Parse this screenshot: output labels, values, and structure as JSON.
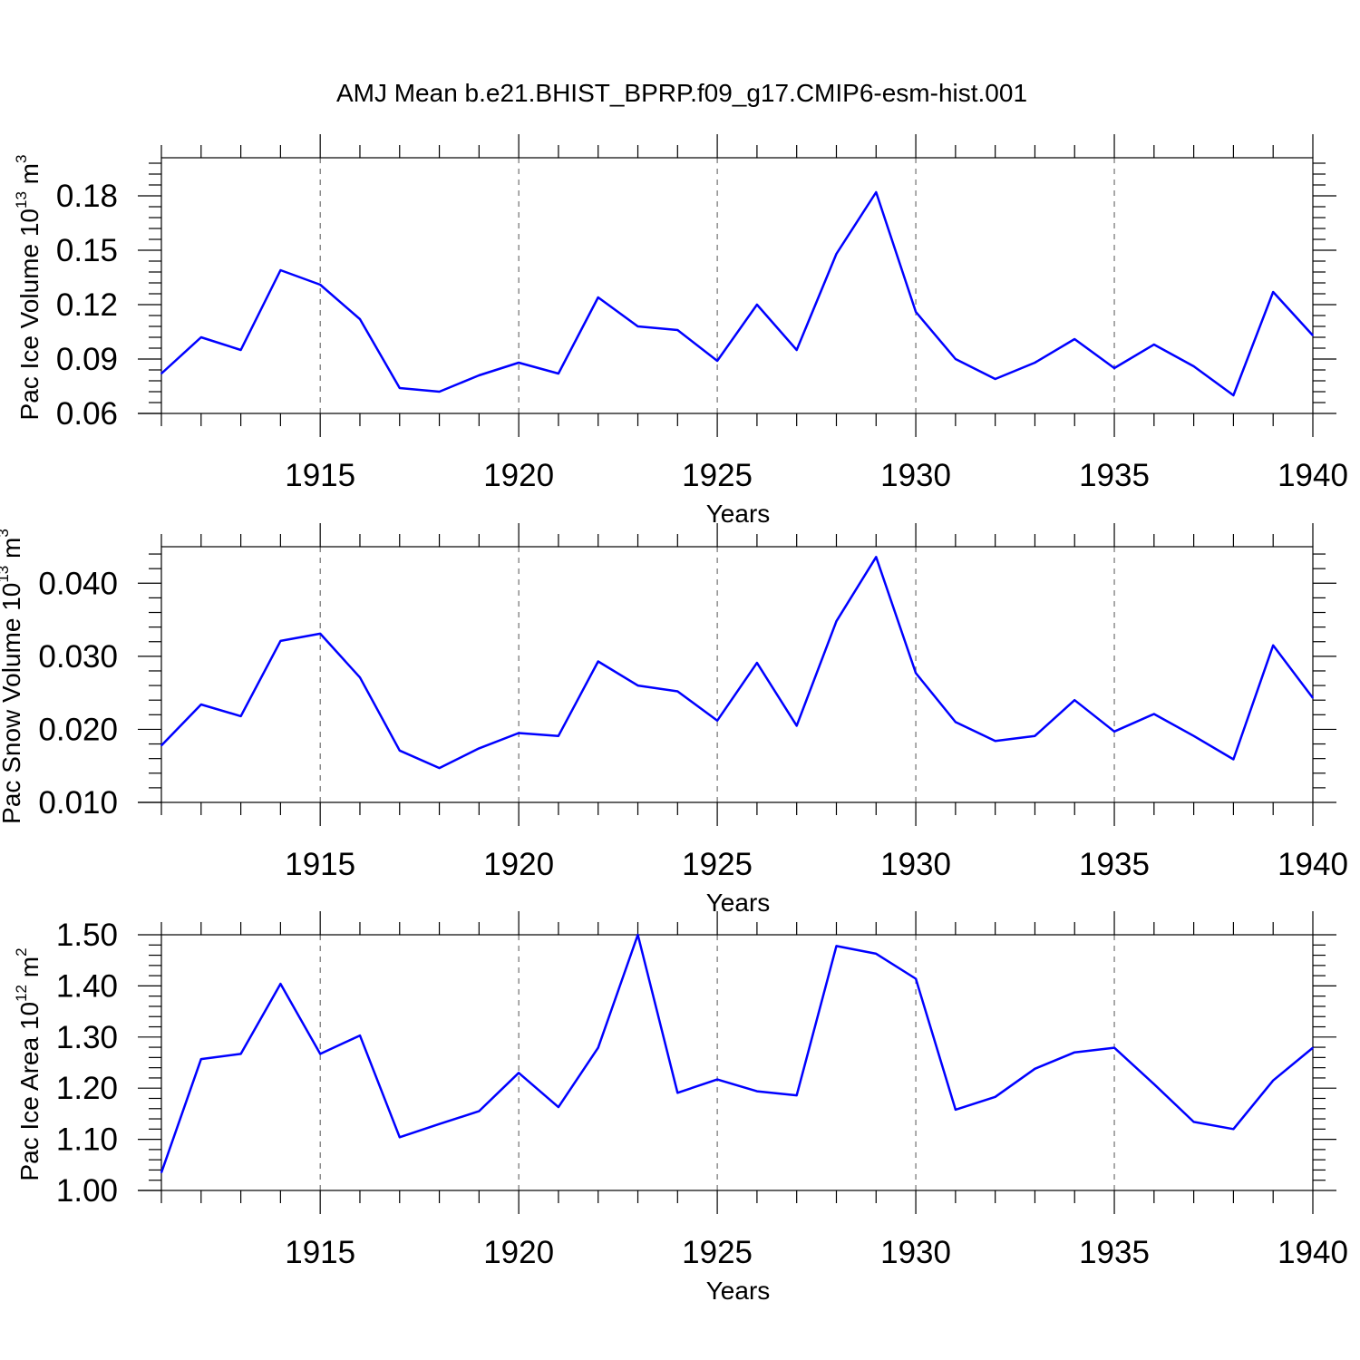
{
  "title": "AMJ Mean b.e21.BHIST_BPRP.f09_g17.CMIP6-esm-hist.001",
  "chart_data": [
    {
      "type": "line",
      "title": "AMJ Mean b.e21.BHIST_BPRP.f09_g17.CMIP6-esm-hist.001",
      "xlabel": "Years",
      "ylabel_main": "Pac Ice Volume 10",
      "ylabel_exp": "13",
      "ylabel_unit": " m",
      "ylabel_unit_exp": "3",
      "xlim": [
        1911,
        1940
      ],
      "ylim": [
        0.06,
        0.201
      ],
      "xticks": [
        1915,
        1920,
        1925,
        1930,
        1935,
        1940
      ],
      "xtick_labels": [
        "1915",
        "1920",
        "1925",
        "1930",
        "1935",
        "1940"
      ],
      "yticks": [
        0.06,
        0.09,
        0.12,
        0.15,
        0.18
      ],
      "ytick_labels": [
        "0.06",
        "0.09",
        "0.12",
        "0.15",
        "0.18"
      ],
      "color": "#0000ff",
      "x": [
        1911,
        1912,
        1913,
        1914,
        1915,
        1916,
        1917,
        1918,
        1919,
        1920,
        1921,
        1922,
        1923,
        1924,
        1925,
        1926,
        1927,
        1928,
        1929,
        1930,
        1931,
        1932,
        1933,
        1934,
        1935,
        1936,
        1937,
        1938,
        1939,
        1940
      ],
      "y": [
        0.082,
        0.102,
        0.095,
        0.139,
        0.131,
        0.112,
        0.074,
        0.072,
        0.081,
        0.088,
        0.082,
        0.124,
        0.108,
        0.106,
        0.089,
        0.12,
        0.095,
        0.148,
        0.182,
        0.116,
        0.09,
        0.079,
        0.088,
        0.101,
        0.085,
        0.098,
        0.086,
        0.07,
        0.127,
        0.103
      ]
    },
    {
      "type": "line",
      "xlabel": "Years",
      "ylabel_main": "Pac Snow Volume 10",
      "ylabel_exp": "13",
      "ylabel_unit": " m",
      "ylabel_unit_exp": "3",
      "xlim": [
        1911,
        1940
      ],
      "ylim": [
        0.01,
        0.045
      ],
      "xticks": [
        1915,
        1920,
        1925,
        1930,
        1935,
        1940
      ],
      "xtick_labels": [
        "1915",
        "1920",
        "1925",
        "1930",
        "1935",
        "1940"
      ],
      "yticks": [
        0.01,
        0.02,
        0.03,
        0.04
      ],
      "ytick_labels": [
        "0.010",
        "0.020",
        "0.030",
        "0.040"
      ],
      "color": "#0000ff",
      "x": [
        1911,
        1912,
        1913,
        1914,
        1915,
        1916,
        1917,
        1918,
        1919,
        1920,
        1921,
        1922,
        1923,
        1924,
        1925,
        1926,
        1927,
        1928,
        1929,
        1930,
        1931,
        1932,
        1933,
        1934,
        1935,
        1936,
        1937,
        1938,
        1939,
        1940
      ],
      "y": [
        0.0178,
        0.0234,
        0.0218,
        0.0321,
        0.0331,
        0.0271,
        0.0171,
        0.0147,
        0.0174,
        0.0195,
        0.0191,
        0.0293,
        0.026,
        0.0252,
        0.0212,
        0.0291,
        0.0205,
        0.0348,
        0.0436,
        0.0277,
        0.021,
        0.0184,
        0.0191,
        0.024,
        0.0197,
        0.0221,
        0.0191,
        0.0159,
        0.0315,
        0.0243
      ]
    },
    {
      "type": "line",
      "xlabel": "Years",
      "ylabel_main": "Pac Ice Area 10",
      "ylabel_exp": "12",
      "ylabel_unit": " m",
      "ylabel_unit_exp": "2",
      "xlim": [
        1911,
        1940
      ],
      "ylim": [
        1.0,
        1.5
      ],
      "xticks": [
        1915,
        1920,
        1925,
        1930,
        1935,
        1940
      ],
      "xtick_labels": [
        "1915",
        "1920",
        "1925",
        "1930",
        "1935",
        "1940"
      ],
      "yticks": [
        1.0,
        1.1,
        1.2,
        1.3,
        1.4,
        1.5
      ],
      "ytick_labels": [
        "1.00",
        "1.10",
        "1.20",
        "1.30",
        "1.40",
        "1.50"
      ],
      "color": "#0000ff",
      "x": [
        1911,
        1912,
        1913,
        1914,
        1915,
        1916,
        1917,
        1918,
        1919,
        1920,
        1921,
        1922,
        1923,
        1924,
        1925,
        1926,
        1927,
        1928,
        1929,
        1930,
        1931,
        1932,
        1933,
        1934,
        1935,
        1936,
        1937,
        1938,
        1939,
        1940
      ],
      "y": [
        1.035,
        1.257,
        1.267,
        1.404,
        1.267,
        1.303,
        1.104,
        1.13,
        1.155,
        1.23,
        1.163,
        1.279,
        1.5,
        1.191,
        1.217,
        1.194,
        1.186,
        1.478,
        1.463,
        1.414,
        1.158,
        1.183,
        1.238,
        1.27,
        1.279,
        1.208,
        1.134,
        1.12,
        1.215,
        1.279
      ]
    }
  ]
}
